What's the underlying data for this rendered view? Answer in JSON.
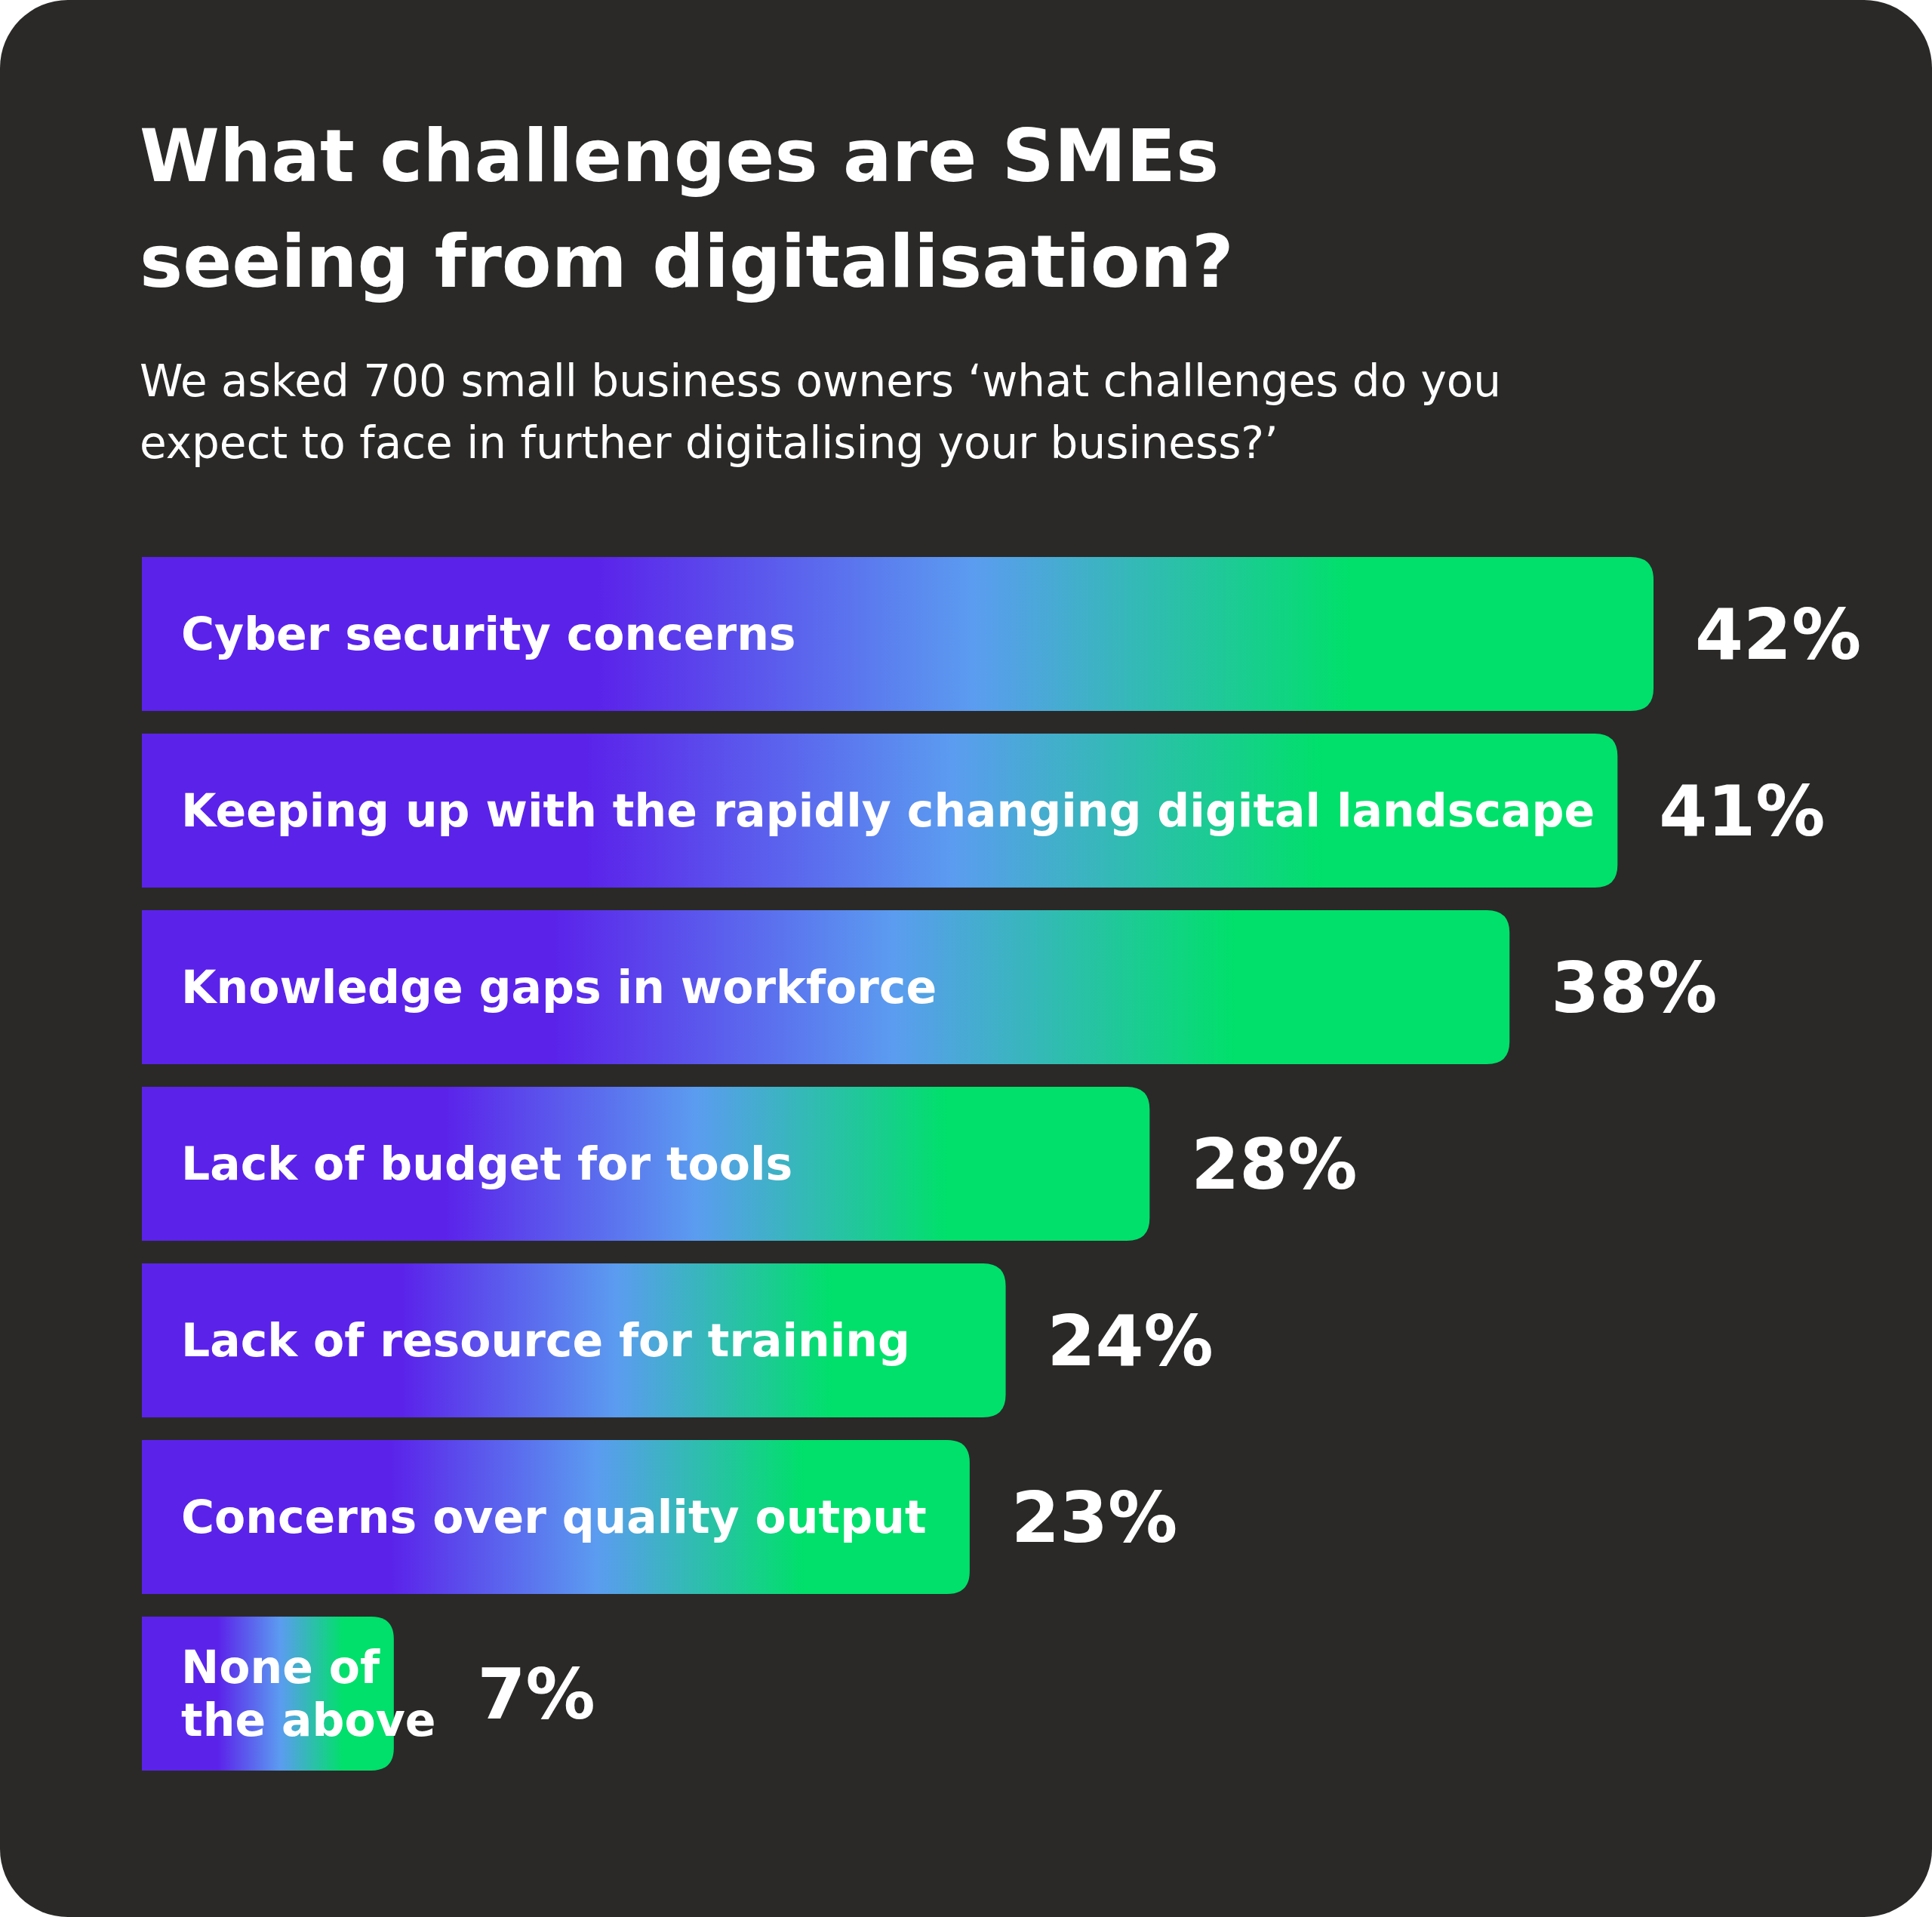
{
  "chart_data": {
    "type": "bar",
    "orientation": "horizontal",
    "title": "What challenges are SMEs seeing from digitalisation?",
    "subtitle": "We asked 700 small business owners ‘what challenges do you expect to face in further digitalising your business?’",
    "categories": [
      "Cyber security concerns",
      "Keeping up with the rapidly changing digital landscape",
      "Knowledge gaps in workforce",
      "Lack of budget for tools",
      "Lack of resource for training",
      "Concerns over quality output",
      "None of the above"
    ],
    "values": [
      42,
      41,
      38,
      28,
      24,
      23,
      7
    ],
    "value_labels": [
      "42%",
      "41%",
      "38%",
      "28%",
      "24%",
      "23%",
      "7%"
    ],
    "color": "#00e06a"
  }
}
